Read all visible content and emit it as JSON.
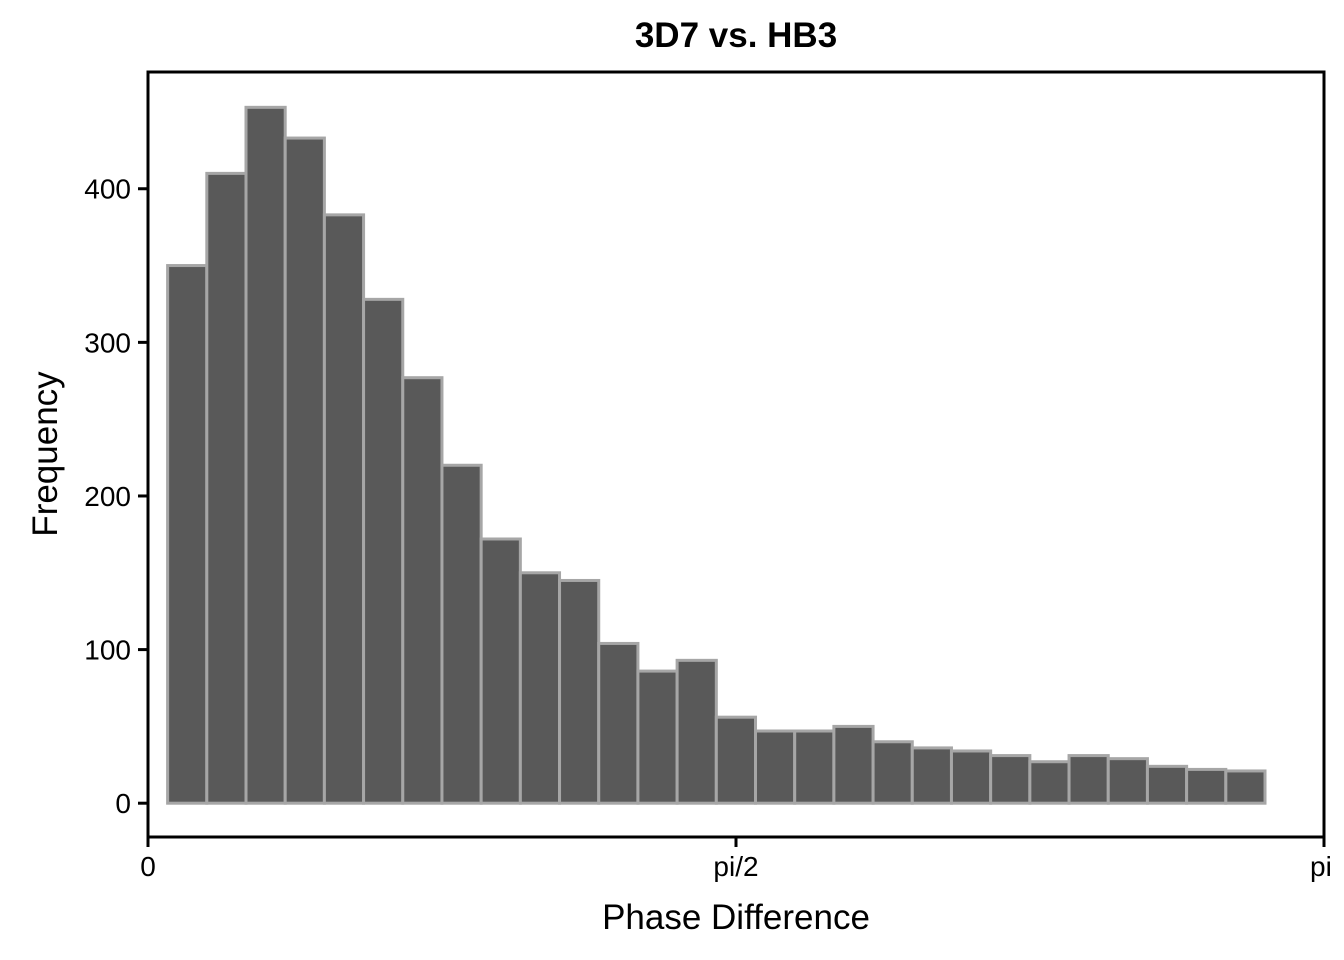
{
  "chart_data": {
    "type": "bar",
    "title": "3D7 vs. HB3",
    "xlabel": "Phase Difference",
    "ylabel": "Frequency",
    "x_domain": [
      0,
      3.14159265
    ],
    "x_tick_values": [
      0,
      1.5707963,
      3.14159265
    ],
    "x_tick_labels": [
      "0",
      "pi/2",
      "pi"
    ],
    "ylim": [
      -22,
      476
    ],
    "y_ticks": [
      0,
      100,
      200,
      300,
      400
    ],
    "y_tick_labels": [
      "0",
      "100",
      "200",
      "300",
      "400"
    ],
    "bin_start": 0.0524,
    "bin_width": 0.1047,
    "values": [
      350,
      410,
      453,
      433,
      383,
      328,
      277,
      220,
      172,
      150,
      145,
      104,
      86,
      93,
      56,
      47,
      47,
      50,
      40,
      36,
      34,
      31,
      27,
      31,
      29,
      24,
      22,
      21
    ],
    "grid": false,
    "legend": "none",
    "colors": {
      "bar_fill": "#595959",
      "bar_stroke": "#a6a6a6",
      "axis": "#000000"
    }
  }
}
